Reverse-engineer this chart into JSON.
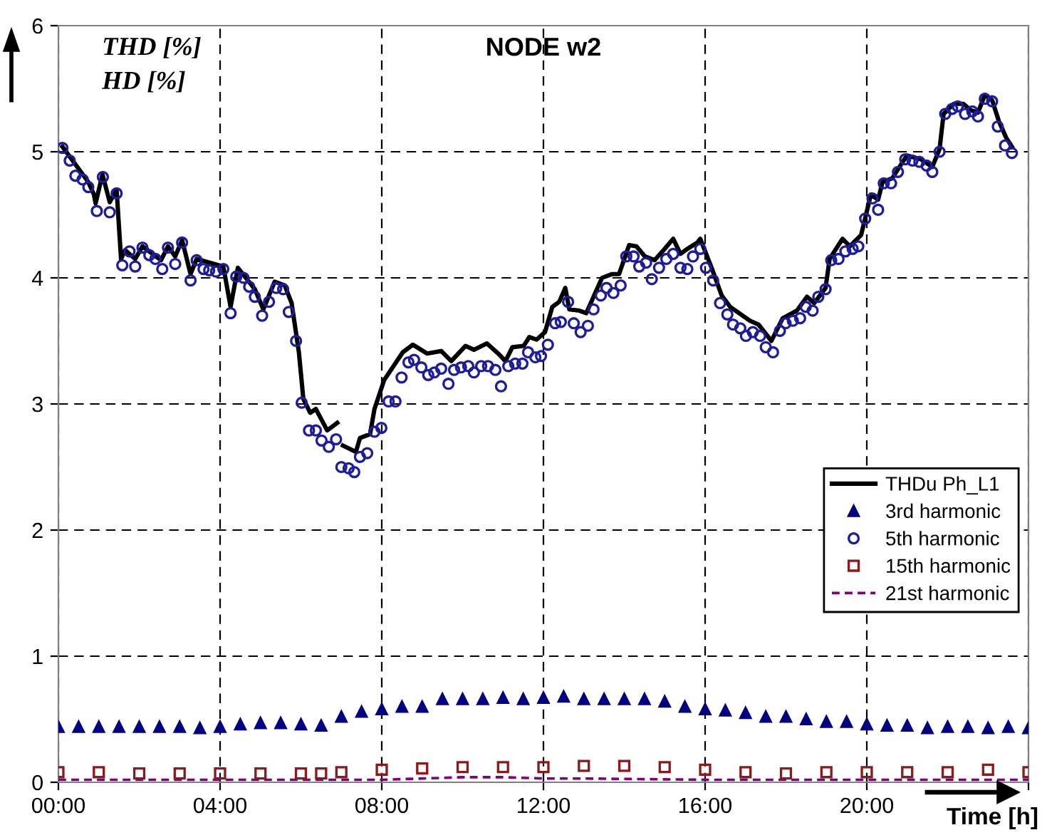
{
  "chart_data": {
    "type": "line",
    "title": "NODE w2",
    "ylabel": "THD [%]\nHD [%]",
    "xlabel": "Time [h]",
    "xlim": [
      0,
      24
    ],
    "ylim": [
      0,
      6
    ],
    "xticks": [
      {
        "value": 0,
        "label": "00:00"
      },
      {
        "value": 4,
        "label": "04:00"
      },
      {
        "value": 8,
        "label": "08:00"
      },
      {
        "value": 12,
        "label": "12:00"
      },
      {
        "value": 16,
        "label": "16:00"
      },
      {
        "value": 20,
        "label": "20:00"
      },
      {
        "value": 24,
        "label": null
      }
    ],
    "yticks": [
      0,
      1,
      2,
      3,
      4,
      5,
      6
    ],
    "grid": true,
    "legend": "right",
    "series": [
      {
        "name": "THDu Ph_L1",
        "color": "#000000",
        "marker": "none",
        "line_style": "solid",
        "x": [
          0.1,
          0.74,
          0.88,
          0.92,
          1.09,
          1.27,
          1.44,
          1.55,
          1.65,
          1.9,
          2.08,
          2.54,
          2.71,
          2.89,
          3.06,
          3.27,
          3.42,
          4.08,
          4.26,
          4.44,
          4.86,
          5.07,
          5.35,
          5.6,
          5.77,
          5.95,
          6.06,
          6.23,
          6.37,
          6.65,
          6.9,
          6.97,
          7.04,
          7.36,
          7.46,
          7.71,
          7.82,
          8.06,
          8.52,
          8.77,
          9.12,
          9.47,
          9.72,
          10.07,
          10.28,
          10.6,
          10.88,
          11.06,
          11.23,
          11.51,
          11.65,
          11.83,
          12.04,
          12.22,
          12.39,
          12.54,
          12.64,
          12.89,
          13.06,
          13.24,
          13.45,
          13.7,
          13.87,
          14.12,
          14.3,
          14.51,
          14.75,
          15.0,
          15.21,
          15.39,
          15.56,
          15.81,
          15.88,
          16.16,
          16.41,
          16.62,
          17.11,
          17.32,
          17.64,
          17.92,
          18.27,
          18.52,
          18.7,
          18.98,
          19.08,
          19.4,
          19.58,
          19.86,
          20.1,
          20.28,
          20.39,
          20.63,
          20.99,
          21.34,
          21.62,
          21.8,
          21.9,
          22.15,
          22.39,
          22.57,
          22.75,
          22.92,
          23.1,
          23.27,
          23.45,
          23.59
        ],
        "values": [
          5.04,
          4.76,
          4.66,
          4.59,
          4.82,
          4.6,
          4.7,
          4.15,
          4.22,
          4.15,
          4.25,
          4.14,
          4.25,
          4.17,
          4.3,
          4.03,
          4.15,
          4.09,
          3.77,
          4.08,
          3.91,
          3.75,
          3.97,
          3.94,
          3.8,
          3.41,
          3.04,
          2.93,
          2.96,
          2.79,
          2.85,
          null,
          2.67,
          2.62,
          2.73,
          2.76,
          2.96,
          3.19,
          3.41,
          3.47,
          3.4,
          3.42,
          3.34,
          3.46,
          3.43,
          3.48,
          3.4,
          3.34,
          3.45,
          3.46,
          3.53,
          3.51,
          3.57,
          3.77,
          3.81,
          3.92,
          3.75,
          3.74,
          3.72,
          3.85,
          4.0,
          4.03,
          4.03,
          4.26,
          4.25,
          4.17,
          4.14,
          4.23,
          4.31,
          4.19,
          4.23,
          4.28,
          4.31,
          4.08,
          3.86,
          3.77,
          3.66,
          3.63,
          3.5,
          3.68,
          3.74,
          3.85,
          3.8,
          3.92,
          4.15,
          4.31,
          4.25,
          4.34,
          4.66,
          4.62,
          4.76,
          4.79,
          4.97,
          4.94,
          4.88,
          5.02,
          5.3,
          5.38,
          5.38,
          5.33,
          5.31,
          5.45,
          5.41,
          5.24,
          5.11,
          5.04
        ]
      },
      {
        "name": "3rd harmonic",
        "type": "scatter",
        "color": "#000080",
        "marker": "triangle",
        "x": [
          0,
          0.5,
          1,
          1.5,
          2,
          2.5,
          3,
          3.5,
          4,
          4.5,
          5,
          5.5,
          6,
          6.5,
          7,
          7.5,
          8,
          8.5,
          9,
          9.5,
          10,
          10.5,
          11,
          11.5,
          12,
          12.5,
          13,
          13.5,
          14,
          14.5,
          15,
          15.5,
          16,
          16.5,
          17,
          17.5,
          18,
          18.5,
          19,
          19.5,
          20,
          20.5,
          21,
          21.5,
          22,
          22.5,
          23,
          23.5,
          24
        ],
        "values": [
          0.44,
          0.44,
          0.44,
          0.44,
          0.44,
          0.44,
          0.44,
          0.43,
          0.44,
          0.46,
          0.47,
          0.47,
          0.46,
          0.45,
          0.52,
          0.56,
          0.58,
          0.6,
          0.6,
          0.66,
          0.66,
          0.66,
          0.67,
          0.66,
          0.67,
          0.68,
          0.66,
          0.66,
          0.66,
          0.66,
          0.64,
          0.6,
          0.58,
          0.57,
          0.55,
          0.52,
          0.52,
          0.5,
          0.48,
          0.48,
          0.46,
          0.45,
          0.45,
          0.43,
          0.44,
          0.44,
          0.43,
          0.44,
          0.43
        ]
      },
      {
        "name": "5th harmonic",
        "type": "scatter",
        "color": "#1c1c9c",
        "marker": "circle",
        "x": [
          0.1,
          0.28,
          0.42,
          0.6,
          0.74,
          0.95,
          1.1,
          1.27,
          1.44,
          1.58,
          1.76,
          1.9,
          2.08,
          2.25,
          2.4,
          2.57,
          2.71,
          2.89,
          3.06,
          3.27,
          3.42,
          3.59,
          3.73,
          3.9,
          4.08,
          4.26,
          4.4,
          4.58,
          4.72,
          4.86,
          5.04,
          5.21,
          5.39,
          5.56,
          5.7,
          5.88,
          6.02,
          6.2,
          6.37,
          6.51,
          6.69,
          6.87,
          7.0,
          7.18,
          7.32,
          7.46,
          7.64,
          7.82,
          7.99,
          8.17,
          8.34,
          8.49,
          8.66,
          8.8,
          8.98,
          9.15,
          9.3,
          9.47,
          9.65,
          9.79,
          9.96,
          10.14,
          10.28,
          10.46,
          10.63,
          10.81,
          10.95,
          11.13,
          11.3,
          11.48,
          11.62,
          11.8,
          11.94,
          12.11,
          12.29,
          12.43,
          12.61,
          12.75,
          12.92,
          13.1,
          13.24,
          13.42,
          13.56,
          13.73,
          13.91,
          14.05,
          14.23,
          14.37,
          14.54,
          14.68,
          14.86,
          15.04,
          15.21,
          15.39,
          15.56,
          15.7,
          15.88,
          16.02,
          16.2,
          16.37,
          16.55,
          16.69,
          16.87,
          17.01,
          17.18,
          17.36,
          17.5,
          17.68,
          17.85,
          17.99,
          18.17,
          18.35,
          18.49,
          18.66,
          18.8,
          18.98,
          19.12,
          19.3,
          19.47,
          19.65,
          19.79,
          19.96,
          20.14,
          20.28,
          20.42,
          20.6,
          20.77,
          20.95,
          21.13,
          21.3,
          21.48,
          21.62,
          21.8,
          21.94,
          22.11,
          22.25,
          22.43,
          22.61,
          22.75,
          22.92,
          23.1,
          23.24,
          23.42,
          23.59
        ],
        "values": [
          5.03,
          4.93,
          4.81,
          4.78,
          4.72,
          4.53,
          4.8,
          4.52,
          4.67,
          4.1,
          4.21,
          4.09,
          4.24,
          4.18,
          4.15,
          4.07,
          4.24,
          4.11,
          4.28,
          3.98,
          4.14,
          4.07,
          4.06,
          4.05,
          4.07,
          3.72,
          4.01,
          4.0,
          3.93,
          3.85,
          3.7,
          3.81,
          3.92,
          3.91,
          3.73,
          3.5,
          3.01,
          2.79,
          2.79,
          2.71,
          2.66,
          2.72,
          2.5,
          2.49,
          2.46,
          2.58,
          2.61,
          2.78,
          2.81,
          3.02,
          3.02,
          3.21,
          3.33,
          3.35,
          3.29,
          3.23,
          3.25,
          3.28,
          3.16,
          3.27,
          3.29,
          3.3,
          3.25,
          3.3,
          3.3,
          3.27,
          3.14,
          3.3,
          3.32,
          3.32,
          3.41,
          3.37,
          3.38,
          3.47,
          3.64,
          3.65,
          3.81,
          3.64,
          3.57,
          3.62,
          3.75,
          3.86,
          3.92,
          3.88,
          3.94,
          4.17,
          4.17,
          4.09,
          4.12,
          3.99,
          4.08,
          4.15,
          4.19,
          4.08,
          4.07,
          4.17,
          4.23,
          4.08,
          3.98,
          3.8,
          3.71,
          3.63,
          3.6,
          3.54,
          3.57,
          3.54,
          3.45,
          3.41,
          3.58,
          3.64,
          3.66,
          3.68,
          3.77,
          3.74,
          3.85,
          3.91,
          4.14,
          4.15,
          4.21,
          4.23,
          4.25,
          4.47,
          4.63,
          4.54,
          4.75,
          4.75,
          4.84,
          4.94,
          4.93,
          4.92,
          4.89,
          4.84,
          5.0,
          5.3,
          5.34,
          5.36,
          5.3,
          5.32,
          5.28,
          5.42,
          5.4,
          5.2,
          5.05,
          4.99
        ]
      },
      {
        "name": "15th harmonic",
        "type": "scatter",
        "color": "#8b1a1a",
        "marker": "square",
        "x": [
          0,
          1,
          2,
          3,
          4,
          5,
          6,
          6.5,
          7,
          8,
          9,
          10,
          11,
          12,
          13,
          14,
          15,
          16,
          17,
          18,
          19,
          20,
          21,
          22,
          23,
          24
        ],
        "values": [
          0.08,
          0.08,
          0.07,
          0.07,
          0.07,
          0.07,
          0.07,
          0.07,
          0.08,
          0.1,
          0.11,
          0.12,
          0.12,
          0.12,
          0.13,
          0.13,
          0.12,
          0.1,
          0.08,
          0.07,
          0.08,
          0.08,
          0.08,
          0.08,
          0.1,
          0.08
        ]
      },
      {
        "name": "21st harmonic",
        "type": "line",
        "color": "#800080",
        "marker": "none",
        "line_style": "dashed",
        "x": [
          0,
          4,
          8,
          10,
          11,
          12,
          13,
          16,
          20,
          24
        ],
        "values": [
          0.02,
          0.02,
          0.02,
          0.04,
          0.04,
          0.03,
          0.03,
          0.02,
          0.02,
          0.02
        ]
      }
    ]
  }
}
